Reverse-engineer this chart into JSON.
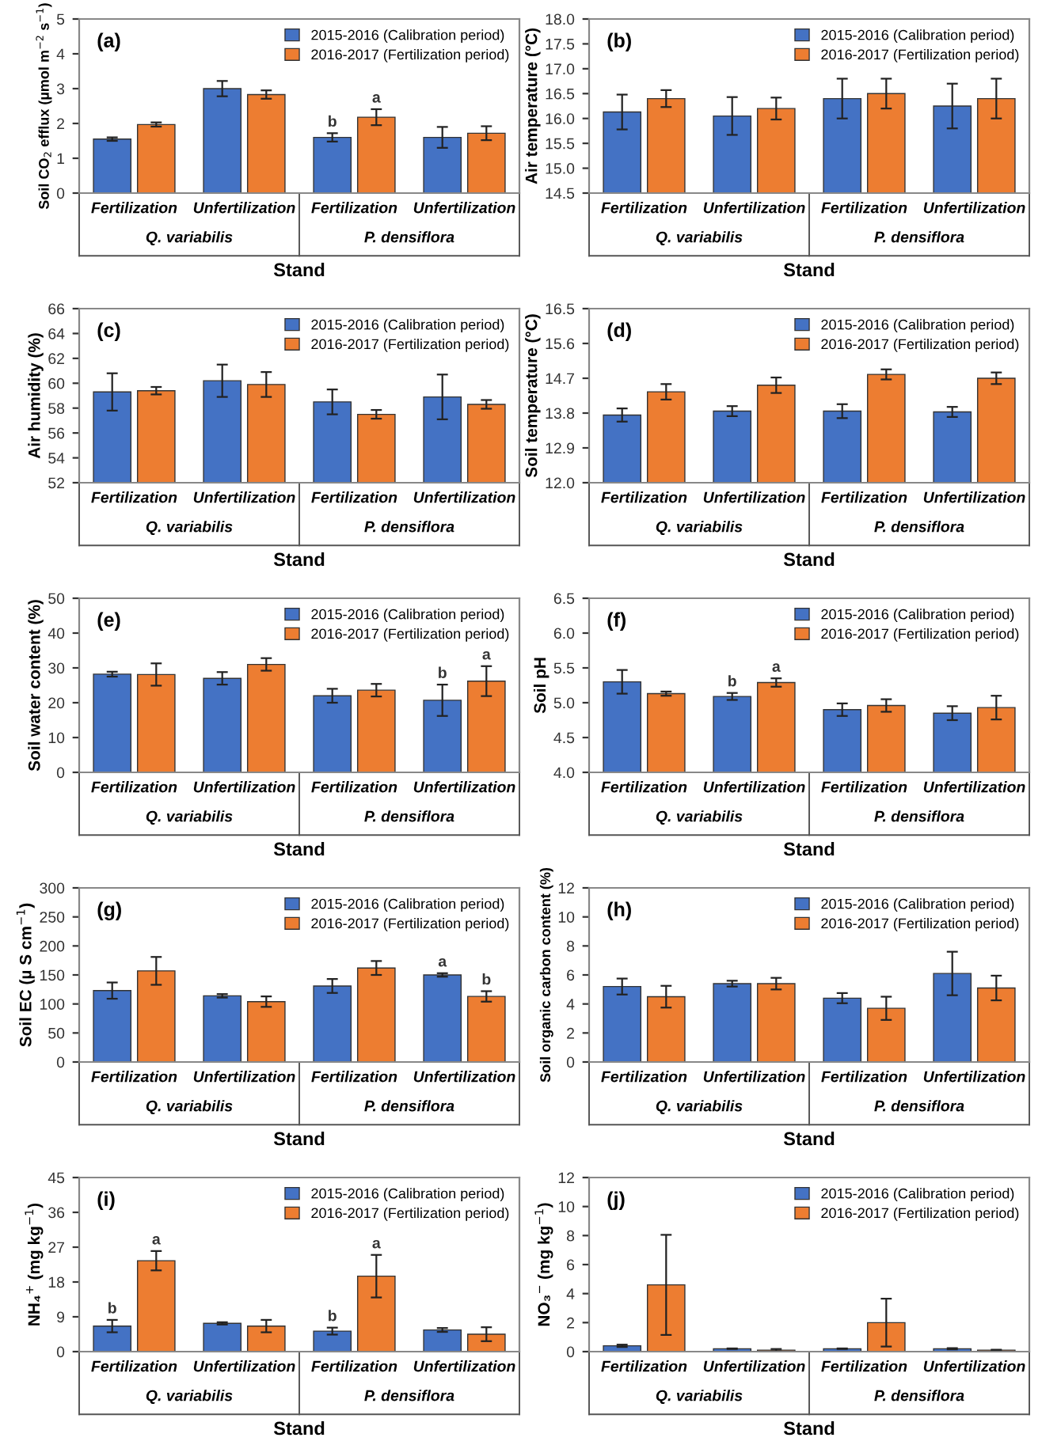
{
  "chart_data": [
    {
      "type": "bar",
      "title": "(a)",
      "ylabel": "Soil CO$_{2}$ efflux (µmol m$^{−2}$ s$^{−1}$)",
      "xlabel": "Stand",
      "categories": [
        "Fertilization",
        "Unfertilization",
        "Fertilization",
        "Unfertilization"
      ],
      "annotations": [
        "Q. variabilis",
        "P. densiflora"
      ],
      "ylim": [
        0,
        5
      ],
      "yticks": [
        0,
        1,
        2,
        3,
        4,
        5
      ],
      "legend": "top right",
      "series": [
        {
          "name": "2015-2016 (Calibration period)",
          "color": "#4472c4",
          "values": [
            1.55,
            3.0,
            1.6,
            1.6
          ],
          "errors": [
            0.05,
            0.22,
            0.12,
            0.3
          ],
          "value_labels": [
            null,
            null,
            "b",
            null
          ]
        },
        {
          "name": "2016-2017 (Fertilization period)",
          "color": "#ed7d31",
          "values": [
            1.97,
            2.83,
            2.18,
            1.72
          ],
          "errors": [
            0.06,
            0.12,
            0.23,
            0.2
          ],
          "value_labels": [
            null,
            null,
            "a",
            null
          ]
        }
      ]
    },
    {
      "type": "bar",
      "title": "(b)",
      "ylabel": "Air temperature (°C)",
      "xlabel": "Stand",
      "categories": [
        "Fertilization",
        "Unfertilization",
        "Fertilization",
        "Unfertilization"
      ],
      "annotations": [
        "Q. variabilis",
        "P. densiflora"
      ],
      "ylim": [
        14.5,
        18.0
      ],
      "yticks": [
        {
          "value": 14.5,
          "label": "14.5"
        },
        {
          "value": 15,
          "label": "15.0"
        },
        {
          "value": 15.5,
          "label": "15.5"
        },
        {
          "value": 16,
          "label": "16.0"
        },
        {
          "value": 16.5,
          "label": "16.5"
        },
        {
          "value": 17,
          "label": "17.0"
        },
        {
          "value": 17.5,
          "label": "17.5"
        },
        {
          "value": 18,
          "label": "18.0"
        }
      ],
      "legend": "top right",
      "series": [
        {
          "name": "2015-2016 (Calibration period)",
          "color": "#4472c4",
          "values": [
            16.13,
            16.05,
            16.4,
            16.25
          ],
          "errors": [
            0.35,
            0.38,
            0.4,
            0.45
          ]
        },
        {
          "name": "2016-2017 (Fertilization period)",
          "color": "#ed7d31",
          "values": [
            16.4,
            16.2,
            16.5,
            16.4
          ],
          "errors": [
            0.17,
            0.22,
            0.3,
            0.4
          ]
        }
      ]
    },
    {
      "type": "bar",
      "title": "(c)",
      "ylabel": "Air humidity (%)",
      "xlabel": "Stand",
      "categories": [
        "Fertilization",
        "Unfertilization",
        "Fertilization",
        "Unfertilization"
      ],
      "annotations": [
        "Q. variabilis",
        "P. densiflora"
      ],
      "ylim": [
        52,
        66
      ],
      "yticks": [
        52,
        54,
        56,
        58,
        60,
        62,
        64,
        66
      ],
      "legend": "top right",
      "series": [
        {
          "name": "2015-2016 (Calibration period)",
          "color": "#4472c4",
          "values": [
            59.3,
            60.2,
            58.5,
            58.9
          ],
          "errors": [
            1.5,
            1.3,
            1.0,
            1.8
          ]
        },
        {
          "name": "2016-2017 (Fertilization period)",
          "color": "#ed7d31",
          "values": [
            59.4,
            59.9,
            57.5,
            58.3
          ],
          "errors": [
            0.3,
            1.0,
            0.35,
            0.35
          ]
        }
      ]
    },
    {
      "type": "bar",
      "title": "(d)",
      "ylabel": "Soil temperature (°C)",
      "xlabel": "Stand",
      "categories": [
        "Fertilization",
        "Unfertilization",
        "Fertilization",
        "Unfertilization"
      ],
      "annotations": [
        "Q. variabilis",
        "P. densiflora"
      ],
      "ylim": [
        12.0,
        16.5
      ],
      "yticks": [
        {
          "value": 12,
          "label": "12.0"
        },
        12.9,
        13.8,
        14.7,
        15.6,
        16.5
      ],
      "legend": "top right",
      "series": [
        {
          "name": "2015-2016 (Calibration period)",
          "color": "#4472c4",
          "values": [
            13.75,
            13.85,
            13.85,
            13.83
          ],
          "errors": [
            0.17,
            0.13,
            0.18,
            0.13
          ]
        },
        {
          "name": "2016-2017 (Fertilization period)",
          "color": "#ed7d31",
          "values": [
            14.35,
            14.52,
            14.8,
            14.7
          ],
          "errors": [
            0.2,
            0.2,
            0.13,
            0.15
          ]
        }
      ]
    },
    {
      "type": "bar",
      "title": "(e)",
      "ylabel": "Soil water content (%)",
      "xlabel": "Stand",
      "categories": [
        "Fertilization",
        "Unfertilization",
        "Fertilization",
        "Unfertilization"
      ],
      "annotations": [
        "Q. variabilis",
        "P. densiflora"
      ],
      "ylim": [
        0,
        50
      ],
      "yticks": [
        0,
        10,
        20,
        30,
        40,
        50
      ],
      "legend": "top right",
      "series": [
        {
          "name": "2015-2016 (Calibration period)",
          "color": "#4472c4",
          "values": [
            28.2,
            27,
            22,
            20.7
          ],
          "errors": [
            0.7,
            1.8,
            2,
            4.5
          ],
          "value_labels": [
            null,
            null,
            null,
            "b"
          ]
        },
        {
          "name": "2016-2017 (Fertilization period)",
          "color": "#ed7d31",
          "values": [
            28.1,
            31,
            23.6,
            26.2
          ],
          "errors": [
            3.2,
            1.8,
            1.8,
            4.3
          ],
          "value_labels": [
            null,
            null,
            null,
            "a"
          ]
        }
      ]
    },
    {
      "type": "bar",
      "title": "(f)",
      "ylabel": "Soil pH",
      "xlabel": "Stand",
      "categories": [
        "Fertilization",
        "Unfertilization",
        "Fertilization",
        "Unfertilization"
      ],
      "annotations": [
        "Q. variabilis",
        "P. densiflora"
      ],
      "ylim": [
        4.0,
        6.5
      ],
      "yticks": [
        {
          "value": 4,
          "label": "4.0"
        },
        4.5,
        {
          "value": 5,
          "label": "5.0"
        },
        5.5,
        {
          "value": 6,
          "label": "6.0"
        },
        6.5
      ],
      "legend": "top right",
      "series": [
        {
          "name": "2015-2016 (Calibration period)",
          "color": "#4472c4",
          "values": [
            5.3,
            5.09,
            4.9,
            4.85
          ],
          "errors": [
            0.17,
            0.05,
            0.09,
            0.1
          ],
          "value_labels": [
            null,
            "b",
            null,
            null
          ]
        },
        {
          "name": "2016-2017 (Fertilization period)",
          "color": "#ed7d31",
          "values": [
            5.13,
            5.29,
            4.96,
            4.93
          ],
          "errors": [
            0.03,
            0.06,
            0.09,
            0.17
          ],
          "value_labels": [
            null,
            "a",
            null,
            null
          ]
        }
      ]
    },
    {
      "type": "bar",
      "title": "(g)",
      "ylabel": "Soil EC (µ S cm$^{−1}$)",
      "xlabel": "Stand",
      "categories": [
        "Fertilization",
        "Unfertilization",
        "Fertilization",
        "Unfertilization"
      ],
      "annotations": [
        "Q. variabilis",
        "P. densiflora"
      ],
      "ylim": [
        0,
        300
      ],
      "yticks": [
        0,
        50,
        100,
        150,
        200,
        250,
        300
      ],
      "legend": "top right",
      "series": [
        {
          "name": "2015-2016 (Calibration period)",
          "color": "#4472c4",
          "values": [
            123,
            114,
            131,
            150
          ],
          "errors": [
            14,
            3,
            12,
            3
          ],
          "value_labels": [
            null,
            null,
            null,
            "a"
          ]
        },
        {
          "name": "2016-2017 (Fertilization period)",
          "color": "#ed7d31",
          "values": [
            157,
            104,
            162,
            113
          ],
          "errors": [
            24,
            9,
            12,
            9
          ],
          "value_labels": [
            null,
            null,
            null,
            "b"
          ]
        }
      ]
    },
    {
      "type": "bar",
      "title": "(h)",
      "ylabel": "Soil organic carbon content (%)",
      "xlabel": "Stand",
      "categories": [
        "Fertilization",
        "Unfertilization",
        "Fertilization",
        "Unfertilization"
      ],
      "annotations": [
        "Q. variabilis",
        "P. densiflora"
      ],
      "ylim": [
        0,
        12
      ],
      "yticks": [
        0,
        2,
        4,
        6,
        8,
        10,
        12
      ],
      "legend": "top right",
      "series": [
        {
          "name": "2015-2016 (Calibration period)",
          "color": "#4472c4",
          "values": [
            5.2,
            5.4,
            4.4,
            6.1
          ],
          "errors": [
            0.55,
            0.2,
            0.35,
            1.5
          ]
        },
        {
          "name": "2016-2017 (Fertilization period)",
          "color": "#ed7d31",
          "values": [
            4.5,
            5.4,
            3.7,
            5.1
          ],
          "errors": [
            0.75,
            0.4,
            0.8,
            0.85
          ]
        }
      ]
    },
    {
      "type": "bar",
      "title": "(i)",
      "ylabel": "NH₄$^{+}$ (mg kg$^{−1}$)",
      "xlabel": "Stand",
      "categories": [
        "Fertilization",
        "Unfertilization",
        "Fertilization",
        "Unfertilization"
      ],
      "annotations": [
        "Q. variabilis",
        "P. densiflora"
      ],
      "ylim": [
        0,
        45
      ],
      "yticks": [
        0,
        9,
        18,
        27,
        36,
        45
      ],
      "legend": "top right",
      "series": [
        {
          "name": "2015-2016 (Calibration period)",
          "color": "#4472c4",
          "values": [
            6.6,
            7.3,
            5.3,
            5.6
          ],
          "errors": [
            1.6,
            0.3,
            0.9,
            0.5
          ],
          "value_labels": [
            "b",
            null,
            "b",
            null
          ]
        },
        {
          "name": "2016-2017 (Fertilization period)",
          "color": "#ed7d31",
          "values": [
            23.5,
            6.6,
            19.5,
            4.5
          ],
          "errors": [
            2.5,
            1.6,
            5.5,
            1.8
          ],
          "value_labels": [
            "a",
            null,
            "a",
            null
          ]
        }
      ]
    },
    {
      "type": "bar",
      "title": "(j)",
      "ylabel": "NO₃$^{−}$ (mg kg$^{−1}$)",
      "xlabel": "Stand",
      "categories": [
        "Fertilization",
        "Unfertilization",
        "Fertilization",
        "Unfertilization"
      ],
      "annotations": [
        "Q. variabilis",
        "P. densiflora"
      ],
      "ylim": [
        0,
        12
      ],
      "yticks": [
        0,
        2,
        4,
        6,
        8,
        10,
        12
      ],
      "legend": "top right",
      "series": [
        {
          "name": "2015-2016 (Calibration period)",
          "color": "#4472c4",
          "values": [
            0.4,
            0.2,
            0.2,
            0.2
          ],
          "errors": [
            0.08,
            0.02,
            0.02,
            0.04
          ]
        },
        {
          "name": "2016-2017 (Fertilization period)",
          "color": "#ed7d31",
          "values": [
            4.6,
            0.1,
            2.0,
            0.1
          ],
          "errors": [
            3.45,
            0.08,
            1.65,
            0.03
          ]
        }
      ]
    }
  ]
}
